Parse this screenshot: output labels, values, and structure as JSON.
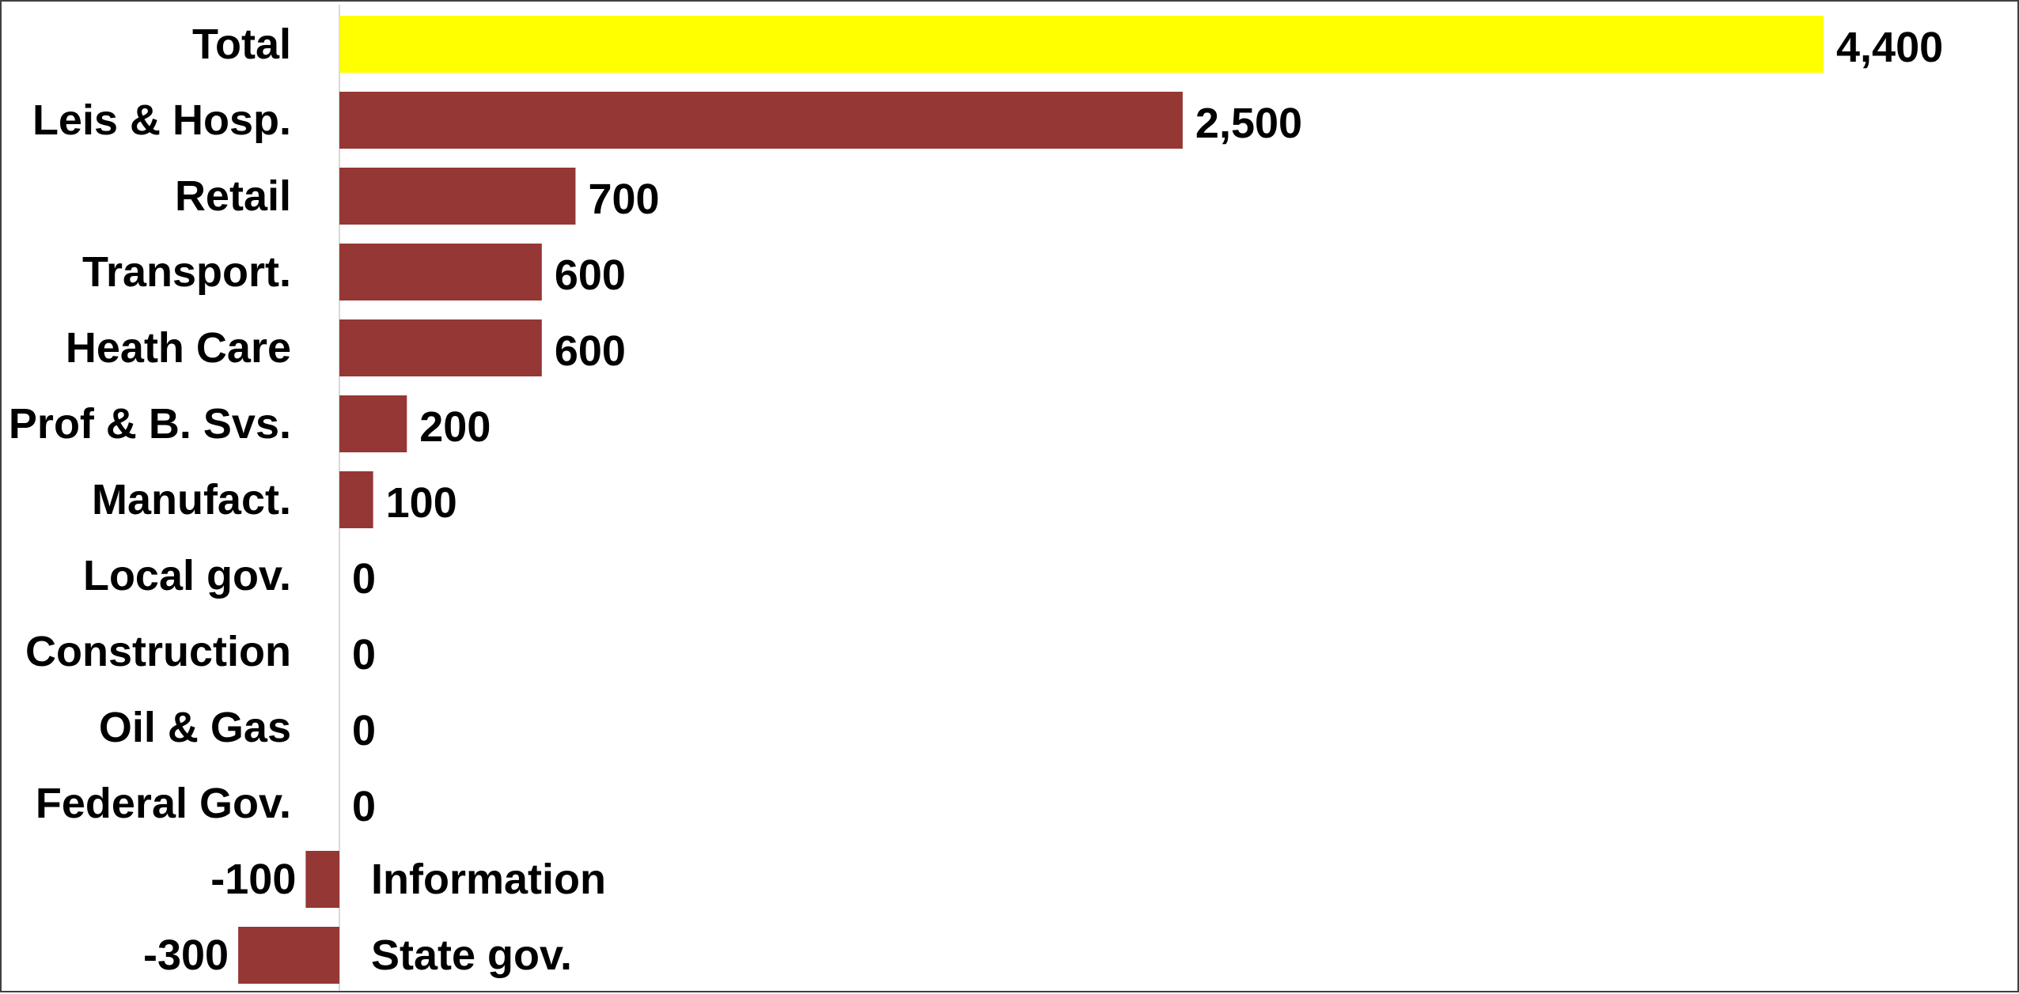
{
  "chart_data": {
    "type": "bar",
    "orientation": "horizontal",
    "title": "",
    "xlabel": "",
    "ylabel": "",
    "grid": false,
    "legend": "none",
    "categories": [
      "Total",
      "Leis & Hosp.",
      "Retail",
      "Transport.",
      "Heath Care",
      "Prof & B. Svs.",
      "Manufact.",
      "Local gov.",
      "Construction",
      "Oil & Gas",
      "Federal Gov.",
      "Information",
      "State gov."
    ],
    "values": [
      4400,
      2500,
      700,
      600,
      600,
      200,
      100,
      0,
      0,
      0,
      0,
      -100,
      -300
    ],
    "value_labels": [
      "4,400",
      "2,500",
      "700",
      "600",
      "600",
      "200",
      "100",
      "0",
      "0",
      "0",
      "0",
      "-100",
      "-300"
    ],
    "highlight_category": "Total",
    "xlim": [
      -300,
      4400
    ],
    "colors": {
      "highlight": "#ffff00",
      "bar": "#953735",
      "axis": "#d9d9d9",
      "text": "#000000",
      "border": "#404040"
    }
  }
}
